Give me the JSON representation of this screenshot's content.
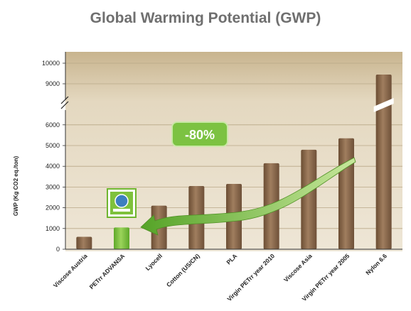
{
  "chart_data": {
    "type": "bar",
    "title": "Global Warming Potential (GWP)",
    "ylabel": "GWP (Kg CO2 eq./ton)",
    "xlabel": "",
    "categories": [
      "Viscose Austria",
      "PETrr ADVANSA",
      "Lyocell",
      "Cotton (US/CN)",
      "PLA",
      "Virgin PETrr year 2010",
      "Viscose Asia",
      "Virgin PETrr year 2005",
      "Nylon 6.6"
    ],
    "values": [
      600,
      1050,
      2100,
      3050,
      3150,
      4150,
      4800,
      5350,
      9450
    ],
    "highlight_index": 1,
    "ylim": [
      0,
      10000
    ],
    "axis_break": [
      6500,
      9000
    ],
    "yticks": [
      0,
      1000,
      2000,
      3000,
      4000,
      5000,
      6000,
      9000,
      10000
    ],
    "grid": true,
    "annotation": "-80%",
    "colors": {
      "bar": "#8b6a4c",
      "highlight": "#7ec13c",
      "arrow": "#6fb52f",
      "plot_bg": "#e3d7bf",
      "title": "#6f6f6f"
    },
    "badge_icon": "eco-label-icon"
  }
}
